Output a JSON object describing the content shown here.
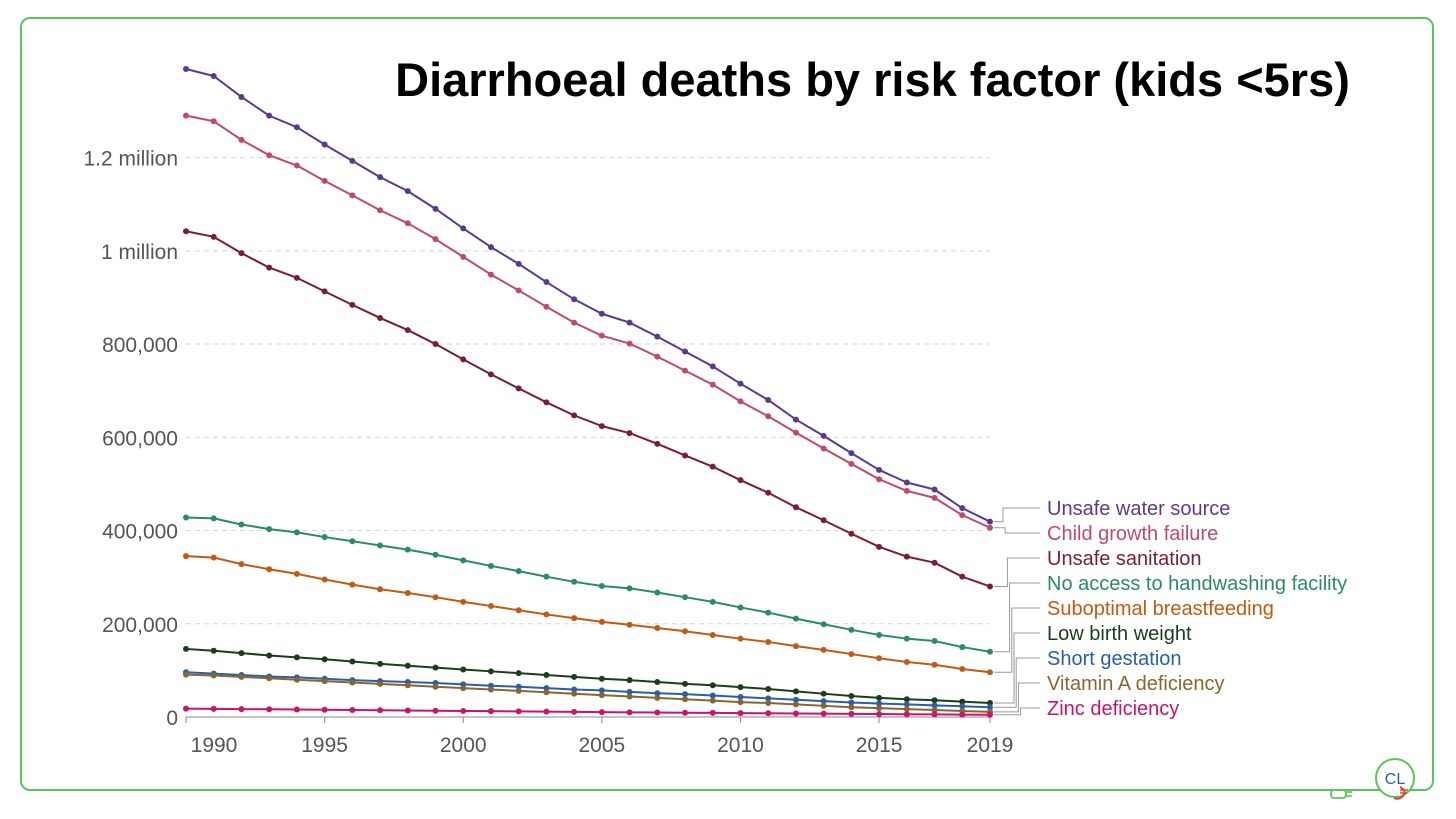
{
  "title": "Diarrhoeal deaths by risk factor (kids <5rs)",
  "logo": {
    "text": "CL"
  },
  "colors": {
    "frame": "#5cc45c",
    "gridline": "#d5d5d5",
    "axis_text": "#555555"
  },
  "chart_data": {
    "type": "line",
    "title": "Diarrhoeal deaths by risk factor (kids <5rs)",
    "xlabel": "",
    "ylabel": "",
    "x": [
      1990,
      1991,
      1992,
      1993,
      1994,
      1995,
      1996,
      1997,
      1998,
      1999,
      2000,
      2001,
      2002,
      2003,
      2004,
      2005,
      2006,
      2007,
      2008,
      2009,
      2010,
      2011,
      2012,
      2013,
      2014,
      2015,
      2016,
      2017,
      2018,
      2019
    ],
    "xlim": [
      1990,
      2019
    ],
    "ylim": [
      0,
      1390000
    ],
    "xticks": [
      1990,
      1995,
      2000,
      2005,
      2010,
      2015,
      2019
    ],
    "xtick_labels": [
      "1990",
      "1995",
      "2000",
      "2005",
      "2010",
      "2015",
      "2019"
    ],
    "yticks": [
      0,
      200000,
      400000,
      600000,
      800000,
      1000000,
      1200000
    ],
    "ytick_labels": [
      "0",
      "200,000",
      "400,000",
      "600,000",
      "800,000",
      "1 million",
      "1.2 million"
    ],
    "grid": "horizontal dashed",
    "legend": "right, labels at line ends",
    "series": [
      {
        "name": "Unsafe water source",
        "color": "#5b3a8e",
        "values": [
          1390000,
          1375000,
          1330000,
          1290000,
          1265000,
          1228000,
          1193000,
          1158000,
          1128000,
          1090000,
          1048000,
          1008000,
          972000,
          933000,
          896000,
          865000,
          846000,
          816000,
          784000,
          752000,
          715000,
          680000,
          638000,
          603000,
          566000,
          530000,
          503000,
          488000,
          448000,
          419000
        ]
      },
      {
        "name": "Child growth failure",
        "color": "#c04a6a",
        "values": [
          1290000,
          1278000,
          1238000,
          1205000,
          1183000,
          1150000,
          1119000,
          1087000,
          1059000,
          1025000,
          987000,
          949000,
          915000,
          880000,
          846000,
          818000,
          801000,
          773000,
          743000,
          713000,
          677000,
          645000,
          610000,
          576000,
          543000,
          510000,
          485000,
          470000,
          433000,
          406000
        ]
      },
      {
        "name": "Unsafe sanitation",
        "color": "#7a1f2e",
        "values": [
          1042000,
          1030000,
          995000,
          964000,
          942000,
          913000,
          884000,
          856000,
          830000,
          800000,
          767000,
          735000,
          705000,
          675000,
          647000,
          624000,
          609000,
          586000,
          561000,
          537000,
          508000,
          481000,
          450000,
          422000,
          393000,
          365000,
          344000,
          331000,
          301000,
          280000
        ]
      },
      {
        "name": "No access to handwashing facility",
        "color": "#2a8a6a",
        "values": [
          428000,
          426000,
          413000,
          403000,
          396000,
          386000,
          377000,
          368000,
          359000,
          348000,
          336000,
          324000,
          313000,
          301000,
          290000,
          281000,
          276000,
          267000,
          257000,
          247000,
          235000,
          224000,
          211000,
          199000,
          187000,
          176000,
          168000,
          163000,
          150000,
          140000
        ]
      },
      {
        "name": "Suboptimal breastfeeding",
        "color": "#c45a12",
        "values": [
          345000,
          342000,
          328000,
          317000,
          307000,
          295000,
          284000,
          274000,
          266000,
          257000,
          247000,
          238000,
          229000,
          220000,
          212000,
          204000,
          198000,
          191000,
          184000,
          176000,
          168000,
          161000,
          152000,
          144000,
          135000,
          126000,
          118000,
          112000,
          103000,
          96000
        ]
      },
      {
        "name": "Low birth weight",
        "color": "#1a3d1a",
        "values": [
          146000,
          142000,
          137000,
          132000,
          128000,
          124000,
          119000,
          114000,
          110000,
          106000,
          102000,
          98000,
          94000,
          90000,
          86000,
          82000,
          79000,
          75000,
          71000,
          68000,
          64000,
          60000,
          55000,
          50000,
          45000,
          41000,
          38000,
          36000,
          33000,
          30000
        ]
      },
      {
        "name": "Short gestation",
        "color": "#2a5fa8",
        "values": [
          96000,
          93000,
          90000,
          87000,
          85000,
          82000,
          79000,
          77000,
          75000,
          73000,
          70000,
          67000,
          65000,
          62000,
          59000,
          57000,
          54000,
          51000,
          49000,
          46000,
          43000,
          40000,
          37000,
          34000,
          31000,
          29000,
          27000,
          25000,
          23000,
          21000
        ]
      },
      {
        "name": "Vitamin A deficiency",
        "color": "#8a6530",
        "values": [
          91000,
          89000,
          86000,
          83000,
          80000,
          77000,
          74000,
          71000,
          68000,
          65000,
          62000,
          59000,
          56000,
          53000,
          50000,
          47000,
          44000,
          41000,
          38000,
          35000,
          32000,
          30000,
          27000,
          24000,
          21000,
          19000,
          17000,
          15000,
          13000,
          11000
        ]
      },
      {
        "name": "Zinc deficiency",
        "color": "#c8146a",
        "values": [
          18000,
          17500,
          17000,
          16500,
          16000,
          15500,
          15000,
          14500,
          14000,
          13500,
          13000,
          12500,
          12000,
          11500,
          11000,
          10500,
          10000,
          9600,
          9200,
          8800,
          8400,
          8000,
          7600,
          7200,
          6800,
          6400,
          6000,
          5600,
          5200,
          4800
        ]
      }
    ]
  }
}
